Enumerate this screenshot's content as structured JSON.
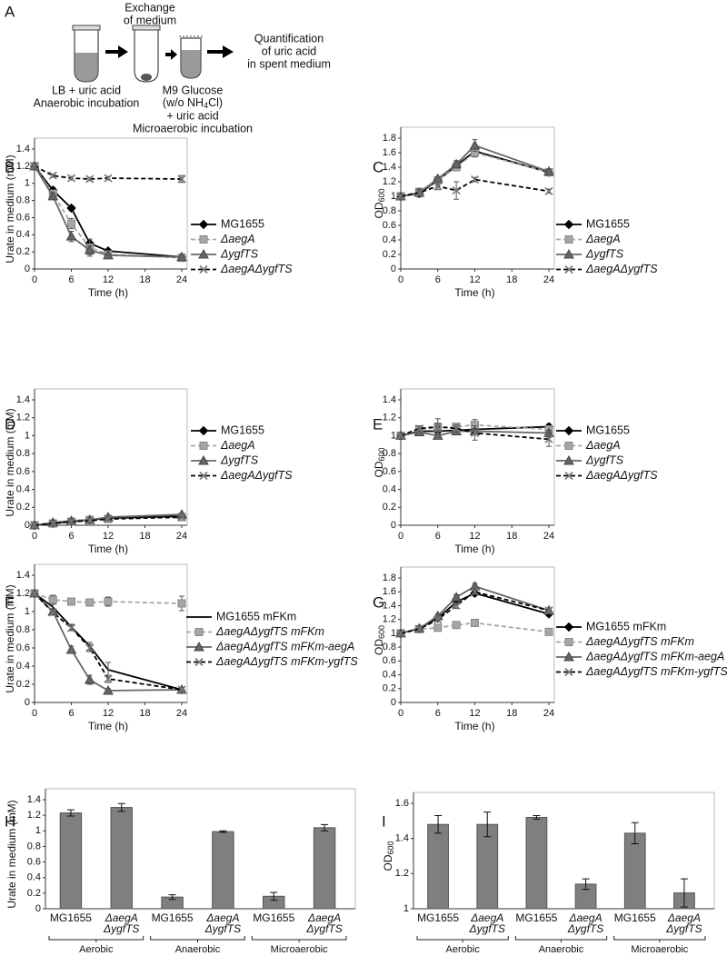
{
  "schematic": {
    "panel": "A",
    "step1": [
      "LB + uric acid",
      "Anaerobic incubation"
    ],
    "step2": [
      "Exchange",
      "of medium"
    ],
    "step3": {
      "line1": "M9 Glucose",
      "line2": [
        "(w/o NH",
        "4",
        "Cl)"
      ],
      "line3": "+ uric acid",
      "line4": "Microaerobic incubation"
    },
    "step4": [
      "Quantification",
      "of uric acid",
      "in spent medium"
    ]
  },
  "chart_data": [
    {
      "panel": "B",
      "type": "line",
      "x": [
        0,
        3,
        6,
        9,
        12,
        24
      ],
      "xlim": [
        0,
        24
      ],
      "xticks": [
        0,
        6,
        12,
        18,
        24
      ],
      "x_label": "Time (h)",
      "y_label": "Urate in medium (mM)",
      "ylim": [
        0,
        1.4
      ],
      "yticks": [
        0,
        0.2,
        0.4,
        0.6,
        0.8,
        1,
        1.2,
        1.4
      ],
      "legend": "right",
      "series": [
        {
          "name": "MG1655",
          "color": "#000000",
          "marker": "diamond",
          "dashed": false,
          "italic": false,
          "values": [
            1.2,
            0.92,
            0.71,
            0.3,
            0.21,
            0.14
          ],
          "errors": [
            0.02,
            0.03,
            0.03,
            0.05,
            0.02,
            0.02
          ]
        },
        {
          "name": "ΔaegA",
          "color": "#a6a6a6",
          "marker": "square",
          "dashed": true,
          "italic": true,
          "values": [
            1.2,
            0.88,
            0.53,
            0.25,
            0.17,
            0.13
          ],
          "errors": [
            0.02,
            0.03,
            0.06,
            0.1,
            0.02,
            0.02
          ]
        },
        {
          "name": "ΔygfTS",
          "color": "#666666",
          "marker": "triangle",
          "dashed": false,
          "italic": true,
          "values": [
            1.2,
            0.85,
            0.38,
            0.22,
            0.16,
            0.14
          ],
          "errors": [
            0.02,
            0.04,
            0.06,
            0.05,
            0.02,
            0.02
          ]
        },
        {
          "name": "ΔaegAΔygfTS",
          "color": "#000000",
          "marker": "x",
          "dashed": true,
          "italic": true,
          "values": [
            1.2,
            1.09,
            1.06,
            1.05,
            1.06,
            1.05
          ],
          "errors": [
            0.02,
            0.02,
            0.02,
            0.02,
            0.02,
            0.04
          ]
        }
      ]
    },
    {
      "panel": "C",
      "type": "line",
      "x": [
        0,
        3,
        6,
        9,
        12,
        24
      ],
      "xlim": [
        0,
        24
      ],
      "xticks": [
        0,
        6,
        12,
        18,
        24
      ],
      "x_label": "Time (h)",
      "y_label": "OD",
      "y_label_sub": "600",
      "ylim": [
        0,
        1.8
      ],
      "yticks": [
        0,
        0.2,
        0.4,
        0.6,
        0.8,
        1,
        1.2,
        1.4,
        1.6,
        1.8
      ],
      "legend": "right",
      "series": [
        {
          "name": "MG1655",
          "color": "#000000",
          "marker": "diamond",
          "dashed": false,
          "italic": false,
          "values": [
            1.0,
            1.04,
            1.22,
            1.42,
            1.62,
            1.33
          ],
          "errors": [
            0.02,
            0.05,
            0.03,
            0.05,
            0.05,
            0.03
          ]
        },
        {
          "name": "ΔaegA",
          "color": "#a6a6a6",
          "marker": "square",
          "dashed": true,
          "italic": true,
          "values": [
            1.0,
            1.06,
            1.22,
            1.4,
            1.6,
            1.33
          ],
          "errors": [
            0.02,
            0.05,
            0.03,
            0.05,
            0.06,
            0.03
          ]
        },
        {
          "name": "ΔygfTS",
          "color": "#666666",
          "marker": "triangle",
          "dashed": false,
          "italic": true,
          "values": [
            1.0,
            1.05,
            1.24,
            1.44,
            1.7,
            1.34
          ],
          "errors": [
            0.02,
            0.05,
            0.03,
            0.05,
            0.08,
            0.03
          ]
        },
        {
          "name": "ΔaegAΔygfTS",
          "color": "#000000",
          "marker": "x",
          "dashed": true,
          "italic": true,
          "values": [
            1.0,
            1.05,
            1.14,
            1.08,
            1.23,
            1.07
          ],
          "errors": [
            0.02,
            0.05,
            0.05,
            0.12,
            0.03,
            0.03
          ]
        }
      ]
    },
    {
      "panel": "D",
      "type": "line",
      "x": [
        0,
        3,
        6,
        9,
        12,
        24
      ],
      "xlim": [
        0,
        24
      ],
      "xticks": [
        0,
        6,
        12,
        18,
        24
      ],
      "x_label": "Time (h)",
      "y_label": "Urate in medium (mM)",
      "ylim": [
        0,
        1.4
      ],
      "yticks": [
        0,
        0.2,
        0.4,
        0.6,
        0.8,
        1,
        1.2,
        1.4
      ],
      "legend": "right",
      "series": [
        {
          "name": "MG1655",
          "color": "#000000",
          "marker": "diamond",
          "dashed": false,
          "italic": false,
          "values": [
            0,
            0.02,
            0.04,
            0.06,
            0.08,
            0.1
          ],
          "errors": [
            0.01,
            0.01,
            0.01,
            0.01,
            0.01,
            0.01
          ]
        },
        {
          "name": "ΔaegA",
          "color": "#a6a6a6",
          "marker": "square",
          "dashed": true,
          "italic": true,
          "values": [
            0,
            0.02,
            0.04,
            0.06,
            0.07,
            0.09
          ],
          "errors": [
            0.01,
            0.01,
            0.01,
            0.01,
            0.01,
            0.01
          ]
        },
        {
          "name": "ΔygfTS",
          "color": "#666666",
          "marker": "triangle",
          "dashed": false,
          "italic": true,
          "values": [
            0,
            0.03,
            0.05,
            0.06,
            0.09,
            0.12
          ],
          "errors": [
            0.01,
            0.01,
            0.01,
            0.01,
            0.01,
            0.01
          ]
        },
        {
          "name": "ΔaegAΔygfTS",
          "color": "#000000",
          "marker": "x",
          "dashed": true,
          "italic": true,
          "values": [
            0,
            0.02,
            0.04,
            0.05,
            0.07,
            0.09
          ],
          "errors": [
            0.01,
            0.01,
            0.01,
            0.01,
            0.01,
            0.01
          ]
        }
      ]
    },
    {
      "panel": "E",
      "type": "line",
      "x": [
        0,
        3,
        6,
        9,
        12,
        24
      ],
      "xlim": [
        0,
        24
      ],
      "xticks": [
        0,
        6,
        12,
        18,
        24
      ],
      "x_label": "Time (h)",
      "y_label": "OD",
      "y_label_sub": "600",
      "ylim": [
        0,
        1.4
      ],
      "yticks": [
        0,
        0.2,
        0.4,
        0.6,
        0.8,
        1,
        1.2,
        1.4
      ],
      "legend": "right",
      "series": [
        {
          "name": "MG1655",
          "color": "#000000",
          "marker": "diamond",
          "dashed": false,
          "italic": false,
          "values": [
            1.0,
            1.05,
            1.05,
            1.06,
            1.07,
            1.1
          ],
          "errors": [
            0.02,
            0.03,
            0.03,
            0.03,
            0.03,
            0.03
          ]
        },
        {
          "name": "ΔaegA",
          "color": "#a6a6a6",
          "marker": "square",
          "dashed": true,
          "italic": true,
          "values": [
            1.0,
            1.07,
            1.09,
            1.1,
            1.12,
            1.07
          ],
          "errors": [
            0.02,
            0.03,
            0.1,
            0.04,
            0.06,
            0.04
          ]
        },
        {
          "name": "ΔygfTS",
          "color": "#666666",
          "marker": "triangle",
          "dashed": false,
          "italic": true,
          "values": [
            1.0,
            1.04,
            1.0,
            1.05,
            1.05,
            1.03
          ],
          "errors": [
            0.02,
            0.03,
            0.03,
            0.03,
            0.03,
            0.03
          ]
        },
        {
          "name": "ΔaegAΔygfTS",
          "color": "#000000",
          "marker": "x",
          "dashed": true,
          "italic": true,
          "values": [
            1.0,
            1.08,
            1.1,
            1.08,
            1.03,
            0.96
          ],
          "errors": [
            0.02,
            0.03,
            0.04,
            0.04,
            0.08,
            0.08
          ]
        }
      ]
    },
    {
      "panel": "F",
      "type": "line",
      "x": [
        0,
        3,
        6,
        9,
        12,
        24
      ],
      "xlim": [
        0,
        24
      ],
      "xticks": [
        0,
        6,
        12,
        18,
        24
      ],
      "x_label": "Time (h)",
      "y_label": "Urate in medium (mM)",
      "ylim": [
        0,
        1.4
      ],
      "yticks": [
        0,
        0.2,
        0.4,
        0.6,
        0.8,
        1,
        1.2,
        1.4
      ],
      "legend": "right",
      "series": [
        {
          "name": "MG1655 mFKm",
          "color": "#000000",
          "marker": "none",
          "dashed": false,
          "italic": false,
          "values": [
            1.2,
            1.05,
            0.83,
            0.62,
            0.36,
            0.14
          ],
          "errors": [
            0.02,
            0.03,
            0.03,
            0.04,
            0.08,
            0.02
          ]
        },
        {
          "name": "ΔaegAΔygfTS mFKm",
          "color": "#a6a6a6",
          "marker": "square",
          "dashed": true,
          "italic": true,
          "values": [
            1.2,
            1.13,
            1.11,
            1.1,
            1.11,
            1.09
          ],
          "errors": [
            0.02,
            0.05,
            0.04,
            0.03,
            0.05,
            0.08
          ]
        },
        {
          "name": "ΔaegAΔygfTS mFKm-aegA",
          "color": "#666666",
          "marker": "triangle",
          "dashed": false,
          "italic": true,
          "values": [
            1.2,
            1.0,
            0.58,
            0.25,
            0.13,
            0.14
          ],
          "errors": [
            0.02,
            0.03,
            0.04,
            0.05,
            0.02,
            0.02
          ]
        },
        {
          "name": "ΔaegAΔygfTS mFKm-ygfTS",
          "color": "#000000",
          "marker": "x",
          "dashed": true,
          "italic": true,
          "values": [
            1.2,
            0.99,
            0.82,
            0.6,
            0.26,
            0.14
          ],
          "errors": [
            0.02,
            0.03,
            0.03,
            0.04,
            0.04,
            0.02
          ]
        }
      ]
    },
    {
      "panel": "G",
      "type": "line",
      "x": [
        0,
        3,
        6,
        9,
        12,
        24
      ],
      "xlim": [
        0,
        24
      ],
      "xticks": [
        0,
        6,
        12,
        18,
        24
      ],
      "x_label": "Time (h)",
      "y_label": "OD",
      "y_label_sub": "600",
      "ylim": [
        0,
        1.8
      ],
      "yticks": [
        0,
        0.2,
        0.4,
        0.6,
        0.8,
        1,
        1.2,
        1.4,
        1.6,
        1.8
      ],
      "legend": "right",
      "series": [
        {
          "name": "MG1655 mFKm",
          "color": "#000000",
          "marker": "diamond",
          "dashed": false,
          "italic": false,
          "values": [
            1.0,
            1.07,
            1.22,
            1.45,
            1.58,
            1.28
          ],
          "errors": [
            0.02,
            0.02,
            0.03,
            0.04,
            0.04,
            0.03
          ]
        },
        {
          "name": "ΔaegAΔygfTS mFKm",
          "color": "#a6a6a6",
          "marker": "square",
          "dashed": true,
          "italic": true,
          "values": [
            1.0,
            1.06,
            1.08,
            1.12,
            1.15,
            1.02
          ],
          "errors": [
            0.02,
            0.02,
            0.03,
            0.03,
            0.03,
            0.03
          ]
        },
        {
          "name": "ΔaegAΔygfTS mFKm-aegA",
          "color": "#666666",
          "marker": "triangle",
          "dashed": false,
          "italic": true,
          "values": [
            1.0,
            1.07,
            1.25,
            1.52,
            1.68,
            1.33
          ],
          "errors": [
            0.02,
            0.02,
            0.03,
            0.04,
            0.04,
            0.03
          ]
        },
        {
          "name": "ΔaegAΔygfTS mFKm-ygfTS",
          "color": "#000000",
          "marker": "x",
          "dashed": true,
          "italic": true,
          "values": [
            1.0,
            1.06,
            1.2,
            1.4,
            1.6,
            1.33
          ],
          "errors": [
            0.02,
            0.02,
            0.03,
            0.04,
            0.04,
            0.03
          ]
        }
      ]
    },
    {
      "panel": "H",
      "type": "bar",
      "y_label": "Urate in medium (mM)",
      "ylim": [
        0,
        1.4
      ],
      "yticks": [
        0,
        0.2,
        0.4,
        0.6,
        0.8,
        1,
        1.2,
        1.4
      ],
      "color": "#7f7f7f",
      "categories": [
        [
          "MG1655"
        ],
        [
          "ΔaegA",
          "ΔygfTS"
        ],
        [
          "MG1655"
        ],
        [
          "ΔaegA",
          "ΔygfTS"
        ],
        [
          "MG1655"
        ],
        [
          "ΔaegA",
          "ΔygfTS"
        ]
      ],
      "groups": [
        "Aerobic",
        "Anaerobic",
        "Microaerobic"
      ],
      "values": [
        1.23,
        1.3,
        0.15,
        0.99,
        0.16,
        1.04
      ],
      "errors": [
        0.04,
        0.05,
        0.03,
        0.01,
        0.05,
        0.04
      ]
    },
    {
      "panel": "I",
      "type": "bar",
      "y_label": "OD",
      "y_label_sub": "600",
      "ylim": [
        1,
        1.6
      ],
      "yticks": [
        1,
        1.2,
        1.4,
        1.6
      ],
      "color": "#7f7f7f",
      "categories": [
        [
          "MG1655"
        ],
        [
          "ΔaegA",
          "ΔygfTS"
        ],
        [
          "MG1655"
        ],
        [
          "ΔaegA",
          "ΔygfTS"
        ],
        [
          "MG1655"
        ],
        [
          "ΔaegA",
          "ΔygfTS"
        ]
      ],
      "groups": [
        "Aerobic",
        "Anaerobic",
        "Microaerobic"
      ],
      "values": [
        1.48,
        1.48,
        1.52,
        1.14,
        1.43,
        1.09
      ],
      "errors": [
        0.05,
        0.07,
        0.01,
        0.03,
        0.06,
        0.08
      ]
    }
  ]
}
